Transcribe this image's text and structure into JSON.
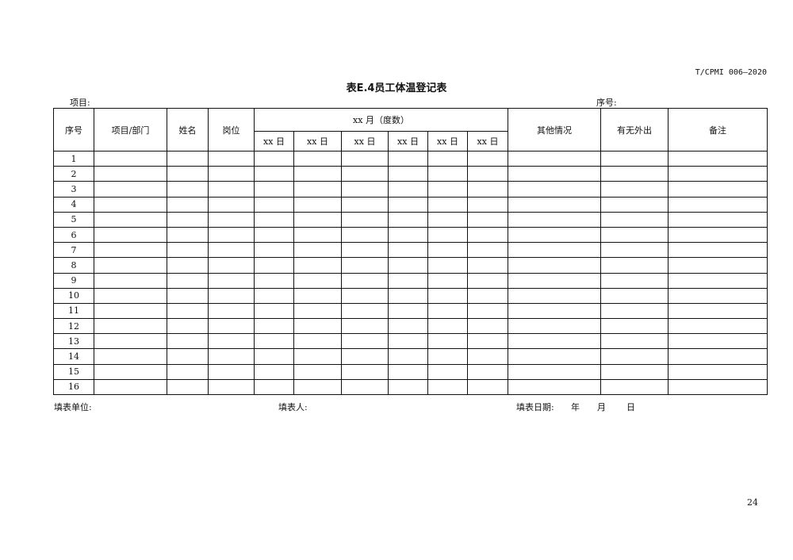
{
  "standard_no": "T/CPMI 006—2020",
  "title": "表E.4员工体温登记表",
  "top_labels": {
    "project": "项目:",
    "serial": "序号:"
  },
  "headers": {
    "no": "序号",
    "dept": "项目/部门",
    "name": "姓名",
    "post": "岗位",
    "month": "xx 月（度数）",
    "days": [
      "xx 日",
      "xx 日",
      "xx 日",
      "xx 日",
      "xx 日",
      "xx 日"
    ],
    "other": "其他情况",
    "out": "有无外出",
    "remark": "备注"
  },
  "rows": [
    "1",
    "2",
    "3",
    "4",
    "5",
    "6",
    "7",
    "8",
    "9",
    "10",
    "11",
    "12",
    "13",
    "14",
    "15",
    "16"
  ],
  "footer": {
    "unit": "填表单位:",
    "filler": "填表人:",
    "date": "填表日期:",
    "year": "年",
    "month": "月",
    "day": "日"
  },
  "page_number": "24"
}
